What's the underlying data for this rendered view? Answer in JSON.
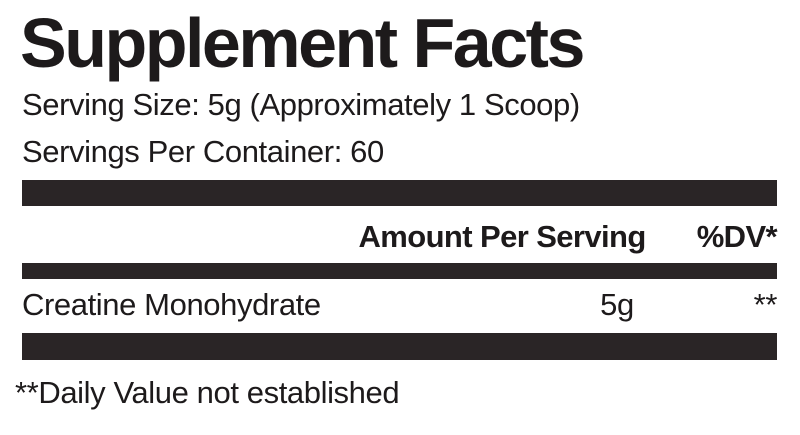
{
  "label": {
    "title": "Supplement Facts",
    "serving_size": "Serving Size: 5g (Approximately 1 Scoop)",
    "servings_per_container": "Servings Per Container: 60",
    "header": {
      "amount_label": "Amount Per Serving",
      "dv_label": "%DV*"
    },
    "rows": [
      {
        "name": "Creatine Monohydrate",
        "amount": "5g",
        "dv": "**"
      }
    ],
    "footnote": "**Daily Value not established",
    "colors": {
      "text": "#1d1a1b",
      "bar": "#2a2526",
      "background": "#ffffff"
    }
  }
}
